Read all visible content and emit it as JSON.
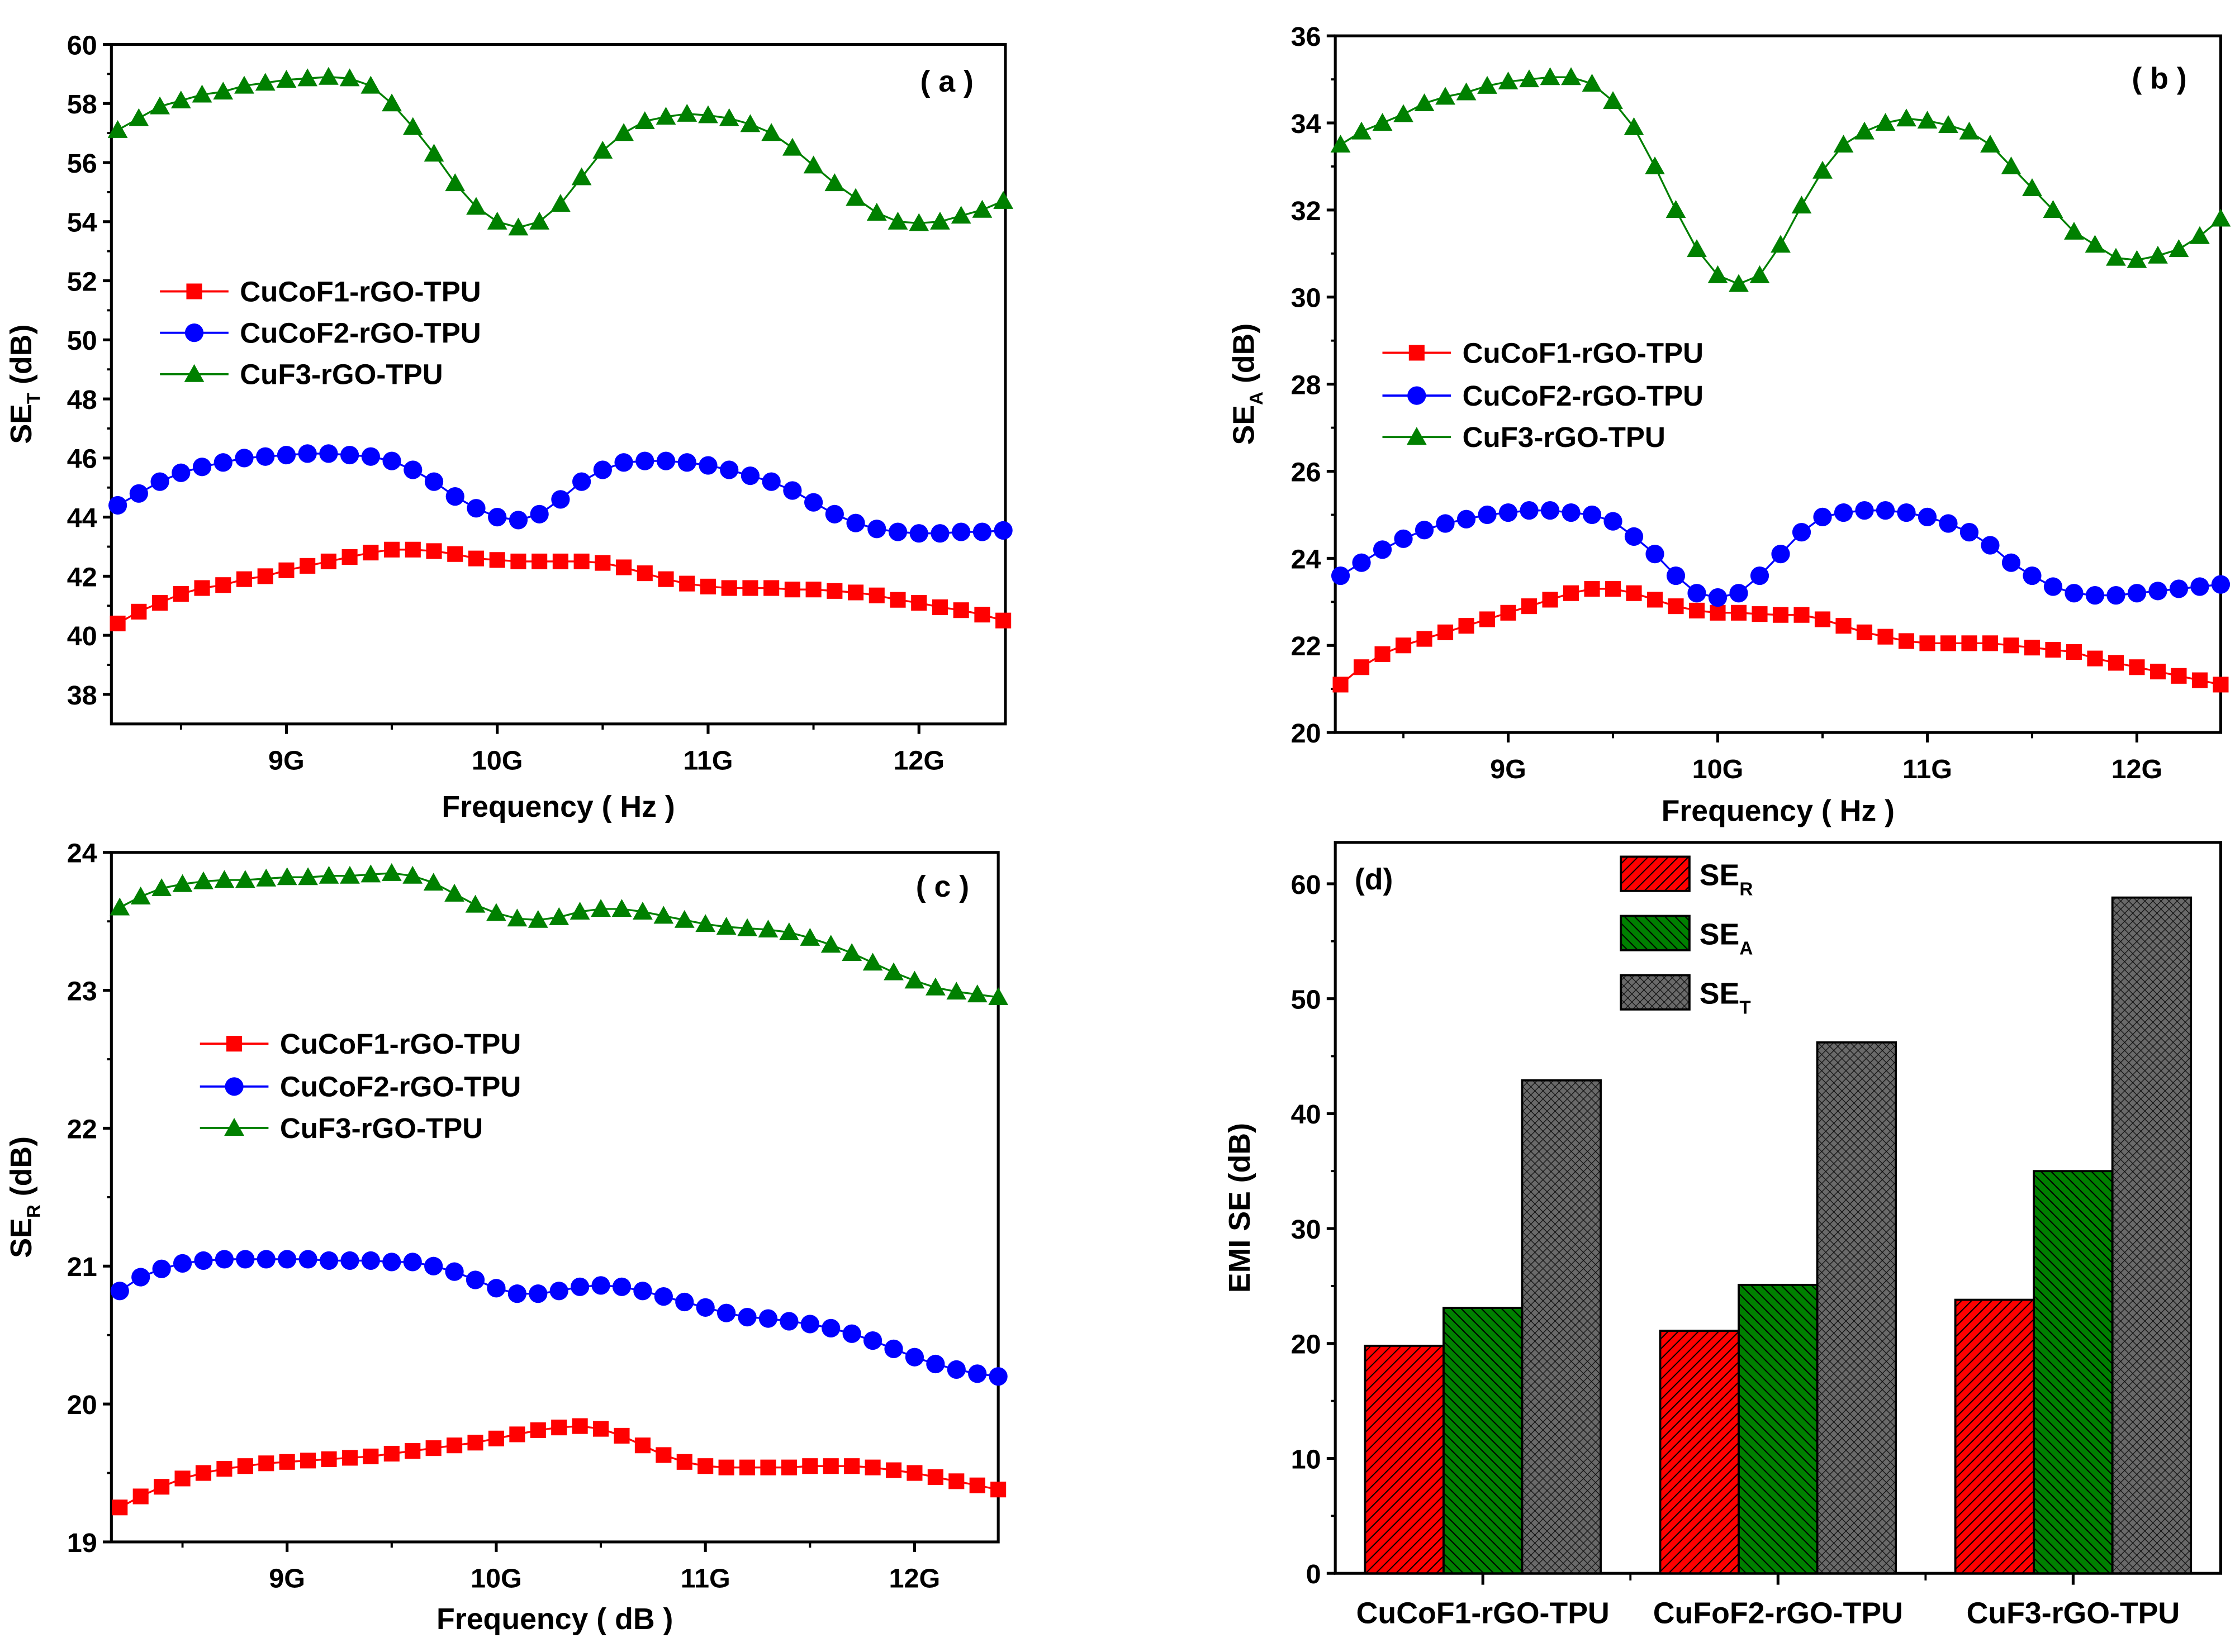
{
  "chart_data": [
    {
      "type": "line",
      "panel_label": "( a )",
      "xlabel": "Frequency ( Hz )",
      "ylabel": {
        "main": "SE",
        "sub": "T",
        "unit": " (dB)"
      },
      "xlim": [
        8.17,
        12.41
      ],
      "ylim": [
        37,
        60
      ],
      "xticks": [
        {
          "v": 9,
          "label": "9G"
        },
        {
          "v": 10,
          "label": "10G"
        },
        {
          "v": 11,
          "label": "11G"
        },
        {
          "v": 12,
          "label": "12G"
        }
      ],
      "yticks": [
        38,
        40,
        42,
        44,
        46,
        48,
        50,
        52,
        54,
        56,
        58,
        60
      ],
      "x_start": 8.2,
      "x_step": 0.1,
      "series": [
        {
          "name": "CuCoF1-rGO-TPU",
          "color": "#ff0000",
          "marker": "square",
          "values": [
            40.4,
            40.8,
            41.1,
            41.4,
            41.6,
            41.7,
            41.9,
            42.0,
            42.2,
            42.35,
            42.5,
            42.65,
            42.8,
            42.9,
            42.9,
            42.85,
            42.75,
            42.6,
            42.55,
            42.5,
            42.5,
            42.5,
            42.5,
            42.45,
            42.3,
            42.1,
            41.9,
            41.75,
            41.65,
            41.6,
            41.6,
            41.6,
            41.55,
            41.55,
            41.5,
            41.45,
            41.35,
            41.2,
            41.1,
            40.95,
            40.85,
            40.7,
            40.5
          ]
        },
        {
          "name": "CuCoF2-rGO-TPU",
          "color": "#0000ff",
          "marker": "circle",
          "values": [
            44.4,
            44.8,
            45.2,
            45.5,
            45.7,
            45.85,
            46.0,
            46.05,
            46.1,
            46.15,
            46.15,
            46.1,
            46.05,
            45.9,
            45.6,
            45.2,
            44.7,
            44.3,
            44.0,
            43.9,
            44.1,
            44.6,
            45.2,
            45.6,
            45.85,
            45.9,
            45.9,
            45.85,
            45.75,
            45.6,
            45.4,
            45.2,
            44.9,
            44.5,
            44.1,
            43.8,
            43.6,
            43.5,
            43.45,
            43.45,
            43.5,
            43.5,
            43.55
          ]
        },
        {
          "name": "CuF3-rGO-TPU",
          "color": "#008000",
          "marker": "triangle",
          "values": [
            57.1,
            57.5,
            57.9,
            58.1,
            58.3,
            58.4,
            58.6,
            58.7,
            58.8,
            58.85,
            58.9,
            58.85,
            58.6,
            58.0,
            57.2,
            56.3,
            55.3,
            54.5,
            54.0,
            53.8,
            54.0,
            54.6,
            55.5,
            56.4,
            57.0,
            57.4,
            57.55,
            57.65,
            57.6,
            57.5,
            57.3,
            57.0,
            56.5,
            55.9,
            55.3,
            54.8,
            54.3,
            54.0,
            53.95,
            54.0,
            54.2,
            54.4,
            54.7
          ]
        }
      ]
    },
    {
      "type": "line",
      "panel_label": "( b )",
      "xlabel": "Frequency ( Hz )",
      "ylabel": {
        "main": "SE",
        "sub": "A",
        "unit": " (dB)"
      },
      "xlim": [
        8.175,
        12.4
      ],
      "ylim": [
        20,
        36
      ],
      "xticks": [
        {
          "v": 9,
          "label": "9G"
        },
        {
          "v": 10,
          "label": "10G"
        },
        {
          "v": 11,
          "label": "11G"
        },
        {
          "v": 12,
          "label": "12G"
        }
      ],
      "yticks": [
        20,
        22,
        24,
        26,
        28,
        30,
        32,
        34,
        36
      ],
      "x_start": 8.2,
      "x_step": 0.1,
      "series": [
        {
          "name": "CuCoF1-rGO-TPU",
          "color": "#ff0000",
          "marker": "square",
          "values": [
            21.1,
            21.5,
            21.8,
            22.0,
            22.15,
            22.3,
            22.45,
            22.6,
            22.75,
            22.9,
            23.05,
            23.2,
            23.3,
            23.3,
            23.2,
            23.05,
            22.9,
            22.8,
            22.75,
            22.75,
            22.72,
            22.7,
            22.7,
            22.6,
            22.45,
            22.3,
            22.2,
            22.1,
            22.05,
            22.05,
            22.05,
            22.05,
            22.0,
            21.95,
            21.9,
            21.85,
            21.7,
            21.6,
            21.5,
            21.4,
            21.3,
            21.2,
            21.1
          ]
        },
        {
          "name": "CuCoF2-rGO-TPU",
          "color": "#0000ff",
          "marker": "circle",
          "values": [
            23.6,
            23.9,
            24.2,
            24.45,
            24.65,
            24.8,
            24.9,
            25.0,
            25.05,
            25.1,
            25.1,
            25.05,
            25.0,
            24.85,
            24.5,
            24.1,
            23.6,
            23.2,
            23.1,
            23.2,
            23.6,
            24.1,
            24.6,
            24.95,
            25.05,
            25.1,
            25.1,
            25.05,
            24.95,
            24.8,
            24.6,
            24.3,
            23.9,
            23.6,
            23.35,
            23.2,
            23.15,
            23.15,
            23.2,
            23.25,
            23.3,
            23.35,
            23.4
          ]
        },
        {
          "name": "CuF3-rGO-TPU",
          "color": "#008000",
          "marker": "triangle",
          "values": [
            33.5,
            33.8,
            34.0,
            34.2,
            34.45,
            34.6,
            34.7,
            34.85,
            34.95,
            35.0,
            35.05,
            35.05,
            34.9,
            34.5,
            33.9,
            33.0,
            32.0,
            31.1,
            30.5,
            30.3,
            30.5,
            31.2,
            32.1,
            32.9,
            33.5,
            33.8,
            34.0,
            34.1,
            34.05,
            33.95,
            33.8,
            33.5,
            33.0,
            32.5,
            32.0,
            31.5,
            31.2,
            30.9,
            30.85,
            30.95,
            31.1,
            31.4,
            31.8
          ]
        }
      ]
    },
    {
      "type": "line",
      "panel_label": "( c )",
      "xlabel": "Frequency ( dB )",
      "ylabel": {
        "main": "SE",
        "sub": "R",
        "unit": " (dB)"
      },
      "xlim": [
        8.16,
        12.4
      ],
      "ylim": [
        19,
        24
      ],
      "xticks": [
        {
          "v": 9,
          "label": "9G"
        },
        {
          "v": 10,
          "label": "10G"
        },
        {
          "v": 11,
          "label": "11G"
        },
        {
          "v": 12,
          "label": "12G"
        }
      ],
      "yticks": [
        19,
        20,
        21,
        22,
        23,
        24
      ],
      "x_start": 8.2,
      "x_step": 0.1,
      "series": [
        {
          "name": "CuCoF1-rGO-TPU",
          "color": "#ff0000",
          "marker": "square",
          "values": [
            19.25,
            19.33,
            19.4,
            19.46,
            19.5,
            19.53,
            19.55,
            19.57,
            19.58,
            19.59,
            19.6,
            19.61,
            19.62,
            19.64,
            19.66,
            19.68,
            19.7,
            19.72,
            19.75,
            19.78,
            19.81,
            19.83,
            19.84,
            19.82,
            19.77,
            19.7,
            19.63,
            19.58,
            19.55,
            19.54,
            19.54,
            19.54,
            19.54,
            19.55,
            19.55,
            19.55,
            19.54,
            19.52,
            19.5,
            19.47,
            19.44,
            19.41,
            19.38
          ]
        },
        {
          "name": "CuCoF2-rGO-TPU",
          "color": "#0000ff",
          "marker": "circle",
          "values": [
            20.82,
            20.92,
            20.98,
            21.02,
            21.04,
            21.05,
            21.05,
            21.05,
            21.05,
            21.05,
            21.04,
            21.04,
            21.04,
            21.03,
            21.03,
            21.0,
            20.96,
            20.9,
            20.84,
            20.8,
            20.8,
            20.82,
            20.85,
            20.86,
            20.85,
            20.82,
            20.78,
            20.74,
            20.7,
            20.66,
            20.63,
            20.62,
            20.6,
            20.58,
            20.55,
            20.51,
            20.46,
            20.4,
            20.34,
            20.29,
            20.25,
            20.22,
            20.2
          ]
        },
        {
          "name": "CuF3-rGO-TPU",
          "color": "#008000",
          "marker": "triangle",
          "values": [
            23.6,
            23.68,
            23.74,
            23.77,
            23.79,
            23.8,
            23.8,
            23.81,
            23.82,
            23.82,
            23.83,
            23.83,
            23.84,
            23.85,
            23.83,
            23.78,
            23.7,
            23.62,
            23.56,
            23.52,
            23.51,
            23.53,
            23.57,
            23.59,
            23.59,
            23.57,
            23.54,
            23.51,
            23.48,
            23.46,
            23.45,
            23.44,
            23.42,
            23.38,
            23.33,
            23.27,
            23.2,
            23.13,
            23.07,
            23.02,
            22.99,
            22.97,
            22.95
          ]
        }
      ]
    },
    {
      "type": "bar",
      "panel_label": "(d)",
      "xlabel": "",
      "ylabel": {
        "main": "EMI SE (dB)",
        "sub": "",
        "unit": ""
      },
      "ylim": [
        0,
        63.6
      ],
      "yticks": [
        0,
        10,
        20,
        30,
        40,
        50,
        60
      ],
      "categories": [
        "CuCoF1-rGO-TPU",
        "CuFoF2-rGO-TPU",
        "CuF3-rGO-TPU"
      ],
      "series": [
        {
          "name": "SE",
          "sub": "R",
          "color": "#ff0000",
          "pattern": "hatch-right",
          "values": [
            19.8,
            21.1,
            23.8
          ]
        },
        {
          "name": "SE",
          "sub": "A",
          "color": "#008000",
          "pattern": "hatch-left",
          "values": [
            23.1,
            25.1,
            35.0
          ]
        },
        {
          "name": "SE",
          "sub": "T",
          "color": "#555555",
          "pattern": "crosshatch",
          "values": [
            42.9,
            46.2,
            58.8
          ]
        }
      ]
    }
  ]
}
